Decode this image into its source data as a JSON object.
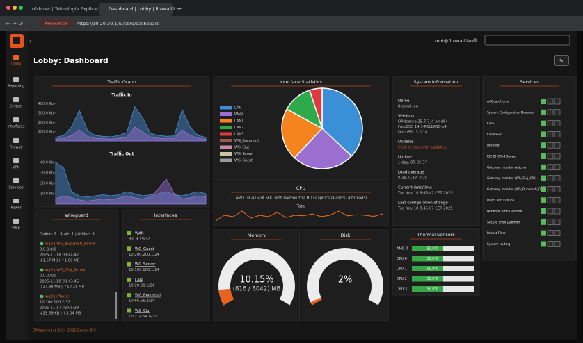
{
  "browser": {
    "tabs": [
      "ofsb.net | Tehnologie Explicat",
      "Dashboard | Lobby | firewall.l"
    ],
    "insecure": "Nesecurizat",
    "url": "https://10.20.30.1/ui/core/dashboard"
  },
  "header": {
    "user": "root@firewall.lan",
    "title": "Lobby: Dashboard"
  },
  "sidebar": [
    "Lobby",
    "Reporting",
    "System",
    "Interfaces",
    "Firewall",
    "VPN",
    "Services",
    "Power",
    "Help"
  ],
  "traffic": {
    "title": "Traffic Graph",
    "in": {
      "title": "Traffic In",
      "ylim": [
        0,
        450
      ],
      "yticks": [
        {
          "value": 400,
          "label": "400.0 Kb"
        },
        {
          "value": 300,
          "label": "300.0 Kb"
        },
        {
          "value": 200,
          "label": "200.0 Kb"
        },
        {
          "value": 100,
          "label": "100.0 Kb"
        }
      ],
      "series": [
        {
          "color": "#4a90d9",
          "values": [
            40,
            60,
            150,
            330,
            120,
            60,
            50,
            45,
            60,
            90,
            370,
            250,
            80,
            60,
            50,
            55,
            340,
            150,
            60,
            40
          ]
        },
        {
          "color": "#9b6fd0",
          "values": [
            20,
            30,
            60,
            120,
            50,
            30,
            25,
            20,
            30,
            40,
            150,
            100,
            40,
            30,
            25,
            30,
            120,
            60,
            30,
            20
          ]
        }
      ]
    },
    "out": {
      "title": "Traffic Out",
      "ylim": [
        0,
        44
      ],
      "yticks": [
        {
          "value": 40,
          "label": "40.0 Kb"
        },
        {
          "value": 30,
          "label": "30.0 Kb"
        },
        {
          "value": 20,
          "label": "20.0 Kb"
        },
        {
          "value": 10,
          "label": "10.0 Kb"
        }
      ],
      "series": [
        {
          "color": "#4a90d9",
          "values": [
            40,
            35,
            12,
            8,
            7,
            8,
            9,
            8,
            9,
            12,
            10,
            8,
            9,
            10,
            12,
            9,
            8,
            10,
            12,
            10
          ]
        },
        {
          "color": "#9b6fd0",
          "values": [
            5,
            8,
            6,
            4,
            3,
            4,
            5,
            4,
            6,
            8,
            6,
            5,
            7,
            15,
            24,
            10,
            5,
            6,
            8,
            7
          ]
        }
      ]
    }
  },
  "interface_stats": {
    "title": "Interface Statistics",
    "type": "pie",
    "categories": [
      "LAN",
      "WAN",
      "LAN1",
      "LAN2",
      "LAN3",
      "WG_Bucuresti",
      "WG_Cluj",
      "WG_Server",
      "WG_Guest"
    ],
    "colors": [
      "#3a8fd6",
      "#9b6fd0",
      "#f5841f",
      "#2eaa4a",
      "#e0393e",
      "#a0564f",
      "#c98aa0",
      "#c8c8a0",
      "#9a9a9a"
    ],
    "values": [
      37,
      25,
      21,
      12,
      5,
      0,
      0,
      0,
      0
    ]
  },
  "system": {
    "title": "System Information",
    "rows": [
      {
        "label": "Name",
        "lines": [
          "firewall.lan"
        ]
      },
      {
        "label": "Versions",
        "lines": [
          "OPNsense 25.7.7_4-amd64",
          "FreeBSD 14.3-RELEASE-p4",
          "OpenSSL 3.0.18"
        ]
      },
      {
        "label": "Updates",
        "lines": [
          "Click to check for updates."
        ]
      },
      {
        "label": "Uptime",
        "lines": [
          "1 day, 07:02:37"
        ]
      },
      {
        "label": "Load average",
        "lines": [
          "0.29, 0.29, 0.25"
        ]
      },
      {
        "label": "Current date/time",
        "lines": [
          "Tue Nov 18 8:45:42 CET 2025"
        ]
      },
      {
        "label": "Last configuration change",
        "lines": [
          "Tue Nov 18 8:45:07 CET 2025"
        ]
      }
    ]
  },
  "services": {
    "title": "Services",
    "items": [
      "AdGuardHome",
      "System Configuration Daemon",
      "Cron",
      "CrowdSec",
      "ddclient",
      "ISC DHCPv4 Server",
      "Gateway monitor watcher",
      "Gateway monitor (WG_Cluj_GW)",
      "Gateway monitor (WG_Bucuresti_GW)",
      "Users and Groups",
      "Network Time Daemon",
      "Secure Shell Daemon",
      "Packet Filter",
      "System routing"
    ]
  },
  "cpu": {
    "title": "CPU",
    "model": "AMD GX-415GA SOC with Radeon(tm) HD Graphics (4 cores, 4 threads)",
    "total": "Total",
    "color": "#f26e1c",
    "ylim": [
      0,
      50
    ],
    "values": [
      10,
      30,
      25,
      45,
      20,
      30,
      25,
      40,
      22,
      30,
      28,
      35,
      25,
      30,
      45,
      28,
      32,
      30,
      26,
      35
    ]
  },
  "wireguard": {
    "title": "Wireguard",
    "summary": "Online: 2 | Stale: 1 | Offline: 3",
    "peers": [
      {
        "name": "wg0 | WG_Bucuresti_Server",
        "lines": [
          "0.0.0.0/0",
          "2025-11-18 08:44:47",
          "↓1.57 MB | ↑1.68 MB"
        ]
      },
      {
        "name": "wg0 | WG_Cluj_Server",
        "lines": [
          "0.0.0.0/0",
          "2025-11-18 08:43:45",
          "↓27.88 MB | ↑10.21 MB"
        ]
      },
      {
        "name": "wg0 | iPhone",
        "lines": [
          "10.100.100.2/32",
          "2025-11-17 02:05:33",
          "↓29.59 KB | ↑3.04 MB"
        ]
      }
    ]
  },
  "interfaces": {
    "title": "Interfaces",
    "items": [
      {
        "name": "WAN",
        "address": "83.    9.19/32"
      },
      {
        "name": "WG_Guest",
        "address": "10.200.200.1/24"
      },
      {
        "name": "WG_Server",
        "address": "10.100.100.1/24"
      },
      {
        "name": "LAN",
        "address": "10.20.30.1/24"
      },
      {
        "name": "WG_Bucuresti",
        "address": "10.66.66.2/24"
      },
      {
        "name": "WG_Cluj",
        "address": "10.114.54.4/32"
      }
    ]
  },
  "memory": {
    "title": "Memory",
    "value": 10.15,
    "value_label": "10.15%",
    "detail": "(816 / 8042) MB",
    "ylim": [
      0,
      100
    ]
  },
  "disk": {
    "title": "Disk",
    "value": 2,
    "value_label": "2%",
    "ylim": [
      0,
      100
    ]
  },
  "thermal": {
    "title": "Thermal Sensors",
    "xlim": [
      0,
      100
    ],
    "sensors": [
      {
        "name": "AMD 0",
        "value": 50,
        "value_label": "50.0°C"
      },
      {
        "name": "CPU 0",
        "value": 50,
        "value_label": "50.0°C"
      },
      {
        "name": "CPU 1",
        "value": 50,
        "value_label": "50.0°C"
      },
      {
        "name": "CPU 2",
        "value": 50,
        "value_label": "50.0°C"
      },
      {
        "name": "CPU 3",
        "value": 50,
        "value_label": "50.0°C"
      }
    ]
  },
  "footer": "OPNsense (c) 2014-2025 Deciso B.V."
}
